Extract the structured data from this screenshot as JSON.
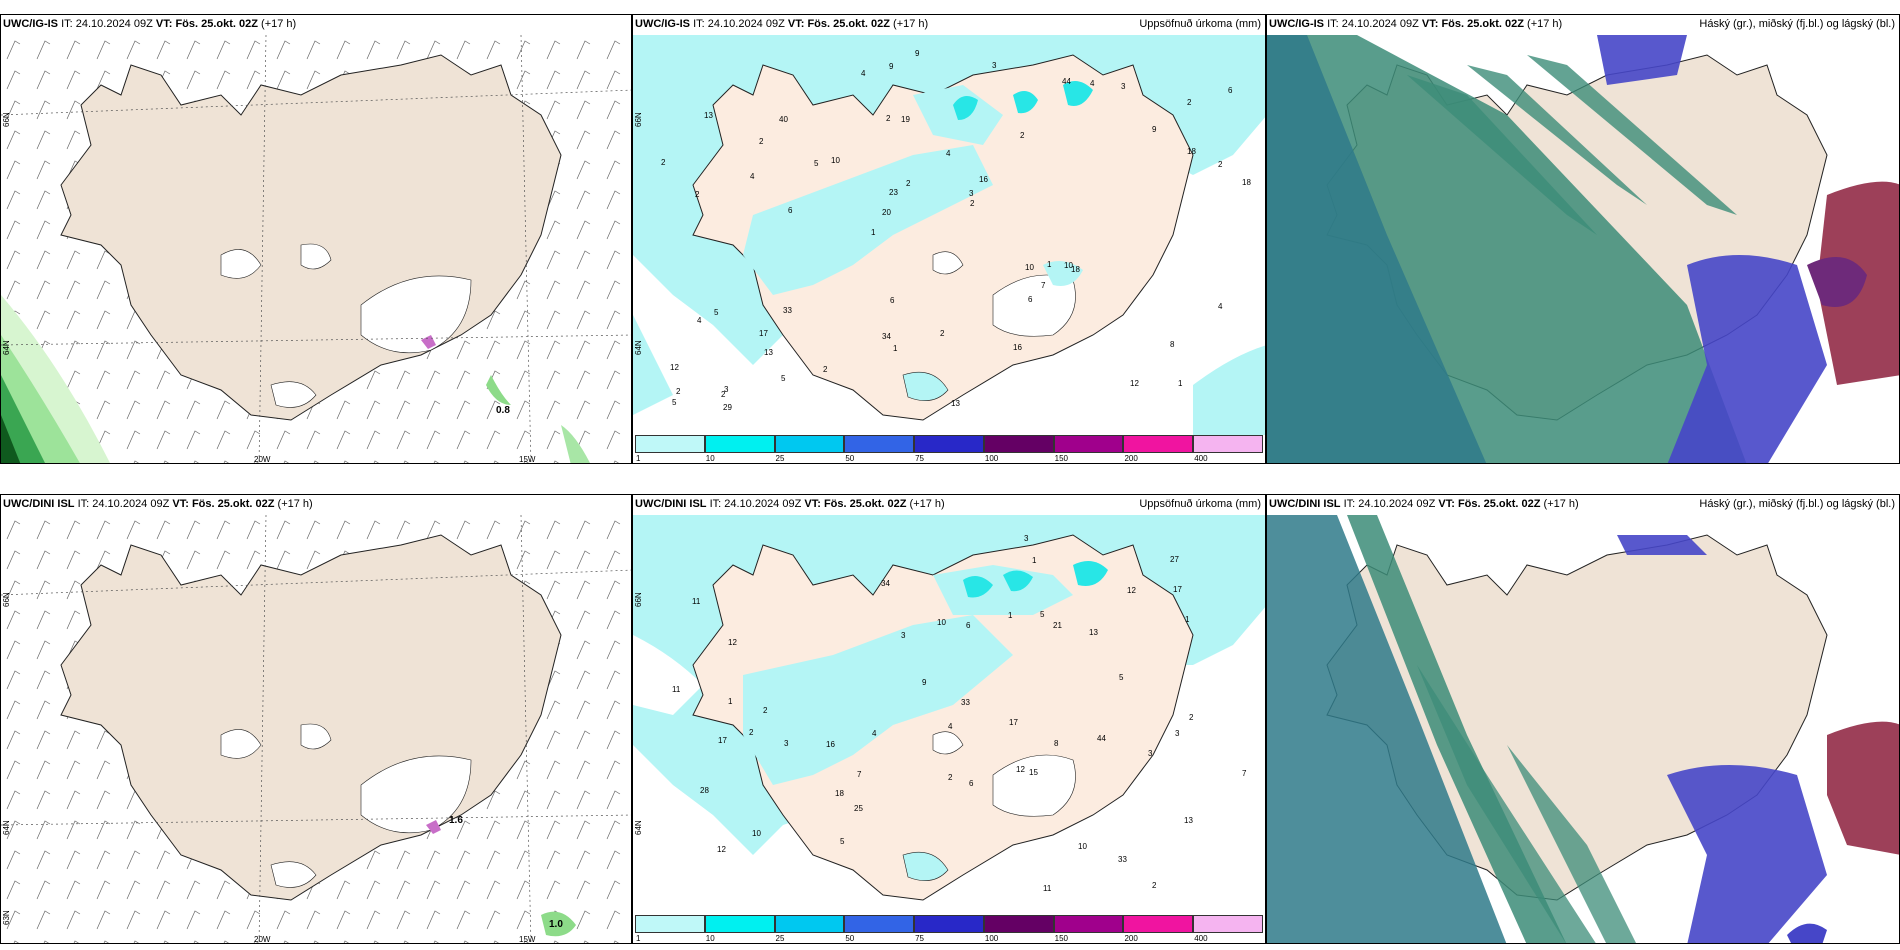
{
  "panels": [
    {
      "id": "p1",
      "model": "UWC/IG-IS",
      "it_label": "IT:",
      "it": "24.10.2024 09Z",
      "vt_label": "VT:",
      "vt": "Fös. 25.okt. 02Z",
      "lead": "(+17 h)",
      "right_title": "",
      "lat_labels": [
        "66N",
        "64N"
      ],
      "lon_labels": [
        "20W",
        "15W"
      ],
      "annot": "0.8"
    },
    {
      "id": "p2",
      "model": "UWC/IG-IS",
      "it_label": "IT:",
      "it": "24.10.2024 09Z",
      "vt_label": "VT:",
      "vt": "Fös. 25.okt. 02Z",
      "lead": "(+17 h)",
      "right_title": "Uppsöfnuð úrkoma (mm)",
      "lat_labels": [
        "66N",
        "64N"
      ]
    },
    {
      "id": "p3",
      "model": "UWC/IG-IS",
      "it_label": "IT:",
      "it": "24.10.2024 09Z",
      "vt_label": "VT:",
      "vt": "Fös. 25.okt. 02Z",
      "lead": "(+17 h)",
      "right_title": "Háský (gr.), miðský (fj.bl.) og lágský (bl.)"
    },
    {
      "id": "p4",
      "model": "UWC/DINI ISL",
      "it_label": "IT:",
      "it": "24.10.2024 09Z",
      "vt_label": "VT:",
      "vt": "Fös. 25.okt. 02Z",
      "lead": "(+17 h)",
      "right_title": "",
      "lat_labels": [
        "66N",
        "64N",
        "63N"
      ],
      "lon_labels": [
        "20W",
        "15W"
      ],
      "annot": "1.0",
      "annot2": "1.6"
    },
    {
      "id": "p5",
      "model": "UWC/DINI ISL",
      "it_label": "IT:",
      "it": "24.10.2024 09Z",
      "vt_label": "VT:",
      "vt": "Fös. 25.okt. 02Z",
      "lead": "(+17 h)",
      "right_title": "Uppsöfnuð úrkoma (mm)",
      "lat_labels": [
        "66N",
        "64N"
      ]
    },
    {
      "id": "p6",
      "model": "UWC/DINI ISL",
      "it_label": "IT:",
      "it": "24.10.2024 09Z",
      "vt_label": "VT:",
      "vt": "Fös. 25.okt. 02Z",
      "lead": "(+17 h)",
      "right_title": "Háský (gr.), miðský (fj.bl.) og lágský (bl.)"
    }
  ],
  "colorbar": {
    "ticks": [
      "1",
      "10",
      "25",
      "50",
      "75",
      "100",
      "150",
      "200",
      "400"
    ],
    "colors": [
      "#bff8f8",
      "#00f0f0",
      "#00c8f0",
      "#3264e6",
      "#2828c8",
      "#640064",
      "#a0008c",
      "#f014a0",
      "#f5b4f0"
    ]
  },
  "colors": {
    "land": "#efe3d6",
    "glacier": "#ffffff",
    "precip_light": "#b4f5f5",
    "precip_mid": "#28e6e6",
    "cloud_high": "#3c8c78",
    "cloud_mid": "#4646c8",
    "cloud_low": "#8c1e3c"
  },
  "precip_values_top": [
    "1",
    "2",
    "2",
    "1",
    "2",
    "3",
    "2",
    "4",
    "5",
    "10",
    "12",
    "13",
    "19",
    "16",
    "18",
    "13",
    "9",
    "18",
    "10",
    "18",
    "20",
    "34",
    "23",
    "40",
    "44",
    "33",
    "12",
    "8",
    "10",
    "13",
    "5",
    "4",
    "6",
    "5",
    "2",
    "3",
    "2",
    "1",
    "2",
    "4",
    "9",
    "6",
    "7",
    "16",
    "17",
    "29",
    "5",
    "2",
    "3",
    "9",
    "6",
    "2",
    "2",
    "4",
    "2",
    "3",
    "4",
    "2",
    "4",
    "6",
    "2",
    "1"
  ],
  "precip_values_bottom": [
    "2",
    "2",
    "12",
    "11",
    "13",
    "12",
    "10",
    "16",
    "13",
    "10",
    "21",
    "33",
    "25",
    "34",
    "17",
    "28",
    "44",
    "33",
    "11",
    "12",
    "27",
    "6",
    "5",
    "7",
    "2",
    "1",
    "3",
    "4",
    "9",
    "17",
    "15",
    "17",
    "18",
    "5",
    "3",
    "3",
    "3",
    "10",
    "12",
    "11",
    "7",
    "6",
    "5",
    "3",
    "4",
    "2",
    "1",
    "1",
    "1",
    "2",
    "8"
  ]
}
